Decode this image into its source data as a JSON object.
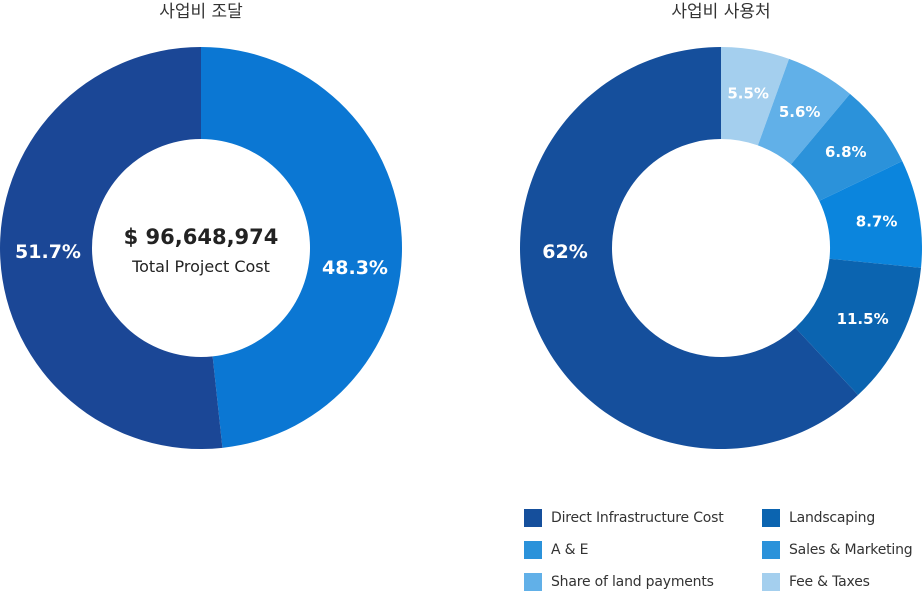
{
  "chart_data": [
    {
      "type": "pie",
      "title": "사업비 조달",
      "center_value": "$ 96,648,974",
      "center_label": "Total Project Cost",
      "slices": [
        {
          "value": 48.3,
          "label": "48.3%",
          "color": "#0b77d3"
        },
        {
          "value": 51.7,
          "label": "51.7%",
          "color": "#1b4796"
        }
      ]
    },
    {
      "type": "pie",
      "title": "사업비 사용처",
      "slices": [
        {
          "name": "Fee & Taxes",
          "value": 5.5,
          "label": "5.5%",
          "color": "#a4cfee"
        },
        {
          "name": "Share of land payments",
          "value": 5.6,
          "label": "5.6%",
          "color": "#61b0e8"
        },
        {
          "name": "Sales & Marketing",
          "value": 6.8,
          "label": "6.8%",
          "color": "#2b92da"
        },
        {
          "name": "A & E",
          "value": 8.7,
          "label": "8.7%",
          "color": "#0b85dd"
        },
        {
          "name": "Landscaping",
          "value": 11.5,
          "label": "11.5%",
          "color": "#0b64b0"
        },
        {
          "name": "Direct Infrastructure Cost",
          "value": 62,
          "label": "62%",
          "color": "#154f9c"
        }
      ],
      "legend": {
        "placement": "bottom",
        "items": [
          {
            "label": "Direct Infrastructure Cost",
            "color": "#154f9c"
          },
          {
            "label": "Landscaping",
            "color": "#0b64b0"
          },
          {
            "label": "A & E",
            "color": "#2b92da"
          },
          {
            "label": "Sales & Marketing",
            "color": "#2b92da"
          },
          {
            "label": "Share of land payments",
            "color": "#61b0e8"
          },
          {
            "label": "Fee & Taxes",
            "color": "#a4cfee"
          }
        ]
      }
    }
  ]
}
